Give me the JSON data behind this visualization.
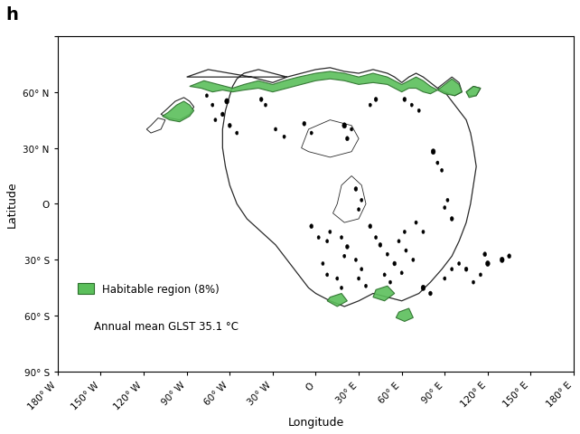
{
  "title_label": "h",
  "xlabel": "Longitude",
  "ylabel": "Latitude",
  "xlim": [
    -180,
    180
  ],
  "ylim": [
    -90,
    90
  ],
  "xticks": [
    -180,
    -150,
    -120,
    -90,
    -60,
    -30,
    0,
    30,
    60,
    90,
    120,
    150,
    180
  ],
  "yticks": [
    -90,
    -60,
    -30,
    0,
    30,
    60,
    90
  ],
  "xtick_labels": [
    "180° W",
    "150° W",
    "120° W",
    "90° W",
    "60° W",
    "30° W",
    "O",
    "30° E",
    "60° E",
    "90° E",
    "120° E",
    "150° E",
    "180° E"
  ],
  "ytick_labels": [
    "90° S",
    "60° S",
    "30° S",
    "O",
    "30° N",
    "60° N",
    ""
  ],
  "legend_text": "Habitable region (8%)",
  "annotation_text": "Annual mean GLST 35.1 °C",
  "continent_color": "#ffffff",
  "continent_edge_color": "#2a2a2a",
  "habitable_color": "#5bbf5b",
  "habitable_edge_color": "#2a6e2a",
  "background_color": "#ffffff",
  "fig_background": "#ffffff",
  "main_continent": [
    [
      -90,
      68
    ],
    [
      -75,
      72
    ],
    [
      -60,
      70
    ],
    [
      -45,
      68
    ],
    [
      -30,
      65
    ],
    [
      -20,
      68
    ],
    [
      -10,
      70
    ],
    [
      0,
      72
    ],
    [
      10,
      73
    ],
    [
      20,
      71
    ],
    [
      30,
      70
    ],
    [
      40,
      72
    ],
    [
      50,
      70
    ],
    [
      55,
      68
    ],
    [
      60,
      65
    ],
    [
      65,
      68
    ],
    [
      70,
      70
    ],
    [
      75,
      68
    ],
    [
      80,
      65
    ],
    [
      85,
      62
    ],
    [
      90,
      60
    ],
    [
      95,
      55
    ],
    [
      100,
      50
    ],
    [
      105,
      45
    ],
    [
      108,
      38
    ],
    [
      110,
      30
    ],
    [
      112,
      20
    ],
    [
      110,
      10
    ],
    [
      108,
      0
    ],
    [
      105,
      -10
    ],
    [
      100,
      -20
    ],
    [
      95,
      -28
    ],
    [
      88,
      -35
    ],
    [
      80,
      -42
    ],
    [
      72,
      -48
    ],
    [
      60,
      -52
    ],
    [
      50,
      -50
    ],
    [
      40,
      -48
    ],
    [
      30,
      -52
    ],
    [
      20,
      -55
    ],
    [
      10,
      -52
    ],
    [
      5,
      -50
    ],
    [
      0,
      -48
    ],
    [
      -5,
      -45
    ],
    [
      -10,
      -40
    ],
    [
      -15,
      -35
    ],
    [
      -20,
      -30
    ],
    [
      -28,
      -22
    ],
    [
      -38,
      -15
    ],
    [
      -48,
      -8
    ],
    [
      -55,
      0
    ],
    [
      -60,
      10
    ],
    [
      -63,
      20
    ],
    [
      -65,
      30
    ],
    [
      -65,
      40
    ],
    [
      -63,
      50
    ],
    [
      -60,
      58
    ],
    [
      -58,
      63
    ],
    [
      -55,
      67
    ],
    [
      -50,
      70
    ],
    [
      -40,
      72
    ],
    [
      -30,
      70
    ],
    [
      -20,
      68
    ],
    [
      -90,
      68
    ]
  ],
  "west_peninsula": [
    [
      -105,
      50
    ],
    [
      -98,
      55
    ],
    [
      -92,
      57
    ],
    [
      -88,
      55
    ],
    [
      -85,
      52
    ],
    [
      -88,
      48
    ],
    [
      -95,
      45
    ],
    [
      -102,
      46
    ],
    [
      -108,
      48
    ],
    [
      -105,
      50
    ]
  ],
  "west_small_lobe": [
    [
      -115,
      42
    ],
    [
      -110,
      46
    ],
    [
      -105,
      45
    ],
    [
      -108,
      40
    ],
    [
      -115,
      38
    ],
    [
      -118,
      40
    ],
    [
      -115,
      42
    ]
  ],
  "ne_peninsula": [
    [
      85,
      62
    ],
    [
      90,
      65
    ],
    [
      95,
      68
    ],
    [
      100,
      65
    ],
    [
      102,
      60
    ],
    [
      97,
      58
    ],
    [
      90,
      60
    ],
    [
      85,
      62
    ]
  ],
  "ne_island": [
    [
      105,
      60
    ],
    [
      110,
      63
    ],
    [
      115,
      62
    ],
    [
      112,
      58
    ],
    [
      107,
      58
    ],
    [
      105,
      60
    ]
  ],
  "small_dots": [
    [
      -78,
      55
    ],
    [
      -72,
      52
    ],
    [
      -68,
      50
    ],
    [
      -65,
      47
    ],
    [
      -62,
      58
    ],
    [
      -58,
      55
    ],
    [
      20,
      40
    ],
    [
      25,
      38
    ],
    [
      18,
      35
    ],
    [
      30,
      10
    ],
    [
      28,
      5
    ],
    [
      32,
      -5
    ],
    [
      40,
      -15
    ],
    [
      45,
      -20
    ],
    [
      50,
      -25
    ],
    [
      55,
      -30
    ],
    [
      60,
      -35
    ],
    [
      65,
      -40
    ],
    [
      70,
      -38
    ],
    [
      62,
      -28
    ],
    [
      35,
      -20
    ],
    [
      38,
      -25
    ],
    [
      40,
      -30
    ],
    [
      20,
      -20
    ],
    [
      22,
      -25
    ],
    [
      18,
      -28
    ],
    [
      10,
      -18
    ],
    [
      12,
      -22
    ],
    [
      -5,
      -15
    ],
    [
      0,
      -20
    ],
    [
      5,
      -25
    ],
    [
      80,
      30
    ],
    [
      82,
      25
    ],
    [
      85,
      20
    ],
    [
      88,
      15
    ],
    [
      92,
      -5
    ],
    [
      95,
      -10
    ],
    [
      90,
      0
    ],
    [
      115,
      -25
    ],
    [
      118,
      -30
    ],
    [
      120,
      -35
    ],
    [
      130,
      -30
    ],
    [
      135,
      -28
    ],
    [
      60,
      58
    ],
    [
      65,
      55
    ],
    [
      70,
      52
    ],
    [
      40,
      58
    ],
    [
      42,
      55
    ],
    [
      35,
      55
    ],
    [
      -40,
      58
    ],
    [
      -38,
      55
    ],
    [
      -30,
      42
    ],
    [
      -25,
      38
    ]
  ],
  "habitable_north": [
    [
      -88,
      63
    ],
    [
      -78,
      66
    ],
    [
      -68,
      64
    ],
    [
      -58,
      62
    ],
    [
      -50,
      64
    ],
    [
      -40,
      66
    ],
    [
      -30,
      64
    ],
    [
      -22,
      66
    ],
    [
      -12,
      68
    ],
    [
      0,
      70
    ],
    [
      10,
      71
    ],
    [
      20,
      70
    ],
    [
      30,
      68
    ],
    [
      40,
      70
    ],
    [
      50,
      68
    ],
    [
      55,
      66
    ],
    [
      60,
      64
    ],
    [
      65,
      66
    ],
    [
      70,
      68
    ],
    [
      75,
      66
    ],
    [
      80,
      63
    ],
    [
      85,
      61
    ],
    [
      80,
      59
    ],
    [
      75,
      60
    ],
    [
      70,
      62
    ],
    [
      65,
      62
    ],
    [
      60,
      60
    ],
    [
      55,
      62
    ],
    [
      50,
      64
    ],
    [
      40,
      65
    ],
    [
      30,
      64
    ],
    [
      20,
      66
    ],
    [
      10,
      67
    ],
    [
      0,
      66
    ],
    [
      -10,
      64
    ],
    [
      -20,
      62
    ],
    [
      -30,
      60
    ],
    [
      -40,
      62
    ],
    [
      -50,
      61
    ],
    [
      -58,
      60
    ],
    [
      -65,
      61
    ],
    [
      -72,
      60
    ],
    [
      -80,
      62
    ],
    [
      -88,
      63
    ]
  ],
  "hab_ne_patch": [
    [
      85,
      61
    ],
    [
      90,
      64
    ],
    [
      95,
      67
    ],
    [
      100,
      64
    ],
    [
      102,
      60
    ],
    [
      97,
      58
    ],
    [
      90,
      59
    ],
    [
      85,
      61
    ]
  ],
  "hab_ne_island": [
    [
      105,
      60
    ],
    [
      110,
      63
    ],
    [
      115,
      62
    ],
    [
      112,
      58
    ],
    [
      107,
      57
    ],
    [
      105,
      60
    ]
  ],
  "hab_west_patch": [
    [
      -103,
      49
    ],
    [
      -97,
      53
    ],
    [
      -92,
      55
    ],
    [
      -88,
      53
    ],
    [
      -85,
      50
    ],
    [
      -88,
      47
    ],
    [
      -95,
      44
    ],
    [
      -102,
      45
    ],
    [
      -107,
      47
    ],
    [
      -103,
      49
    ]
  ],
  "hab_south1": [
    [
      10,
      -50
    ],
    [
      18,
      -48
    ],
    [
      22,
      -52
    ],
    [
      15,
      -55
    ],
    [
      8,
      -52
    ],
    [
      10,
      -50
    ]
  ],
  "hab_south2": [
    [
      42,
      -46
    ],
    [
      50,
      -44
    ],
    [
      55,
      -48
    ],
    [
      48,
      -52
    ],
    [
      40,
      -50
    ],
    [
      42,
      -46
    ]
  ],
  "hab_south_island": [
    [
      58,
      -58
    ],
    [
      65,
      -56
    ],
    [
      68,
      -61
    ],
    [
      62,
      -63
    ],
    [
      56,
      -61
    ],
    [
      58,
      -58
    ]
  ],
  "internal_sea1": [
    [
      -10,
      30
    ],
    [
      -5,
      40
    ],
    [
      10,
      45
    ],
    [
      25,
      42
    ],
    [
      30,
      35
    ],
    [
      25,
      28
    ],
    [
      10,
      25
    ],
    [
      -5,
      28
    ],
    [
      -10,
      30
    ]
  ],
  "internal_sea2": [
    [
      15,
      0
    ],
    [
      18,
      10
    ],
    [
      25,
      15
    ],
    [
      32,
      10
    ],
    [
      35,
      0
    ],
    [
      30,
      -8
    ],
    [
      20,
      -10
    ],
    [
      12,
      -5
    ],
    [
      15,
      0
    ]
  ]
}
